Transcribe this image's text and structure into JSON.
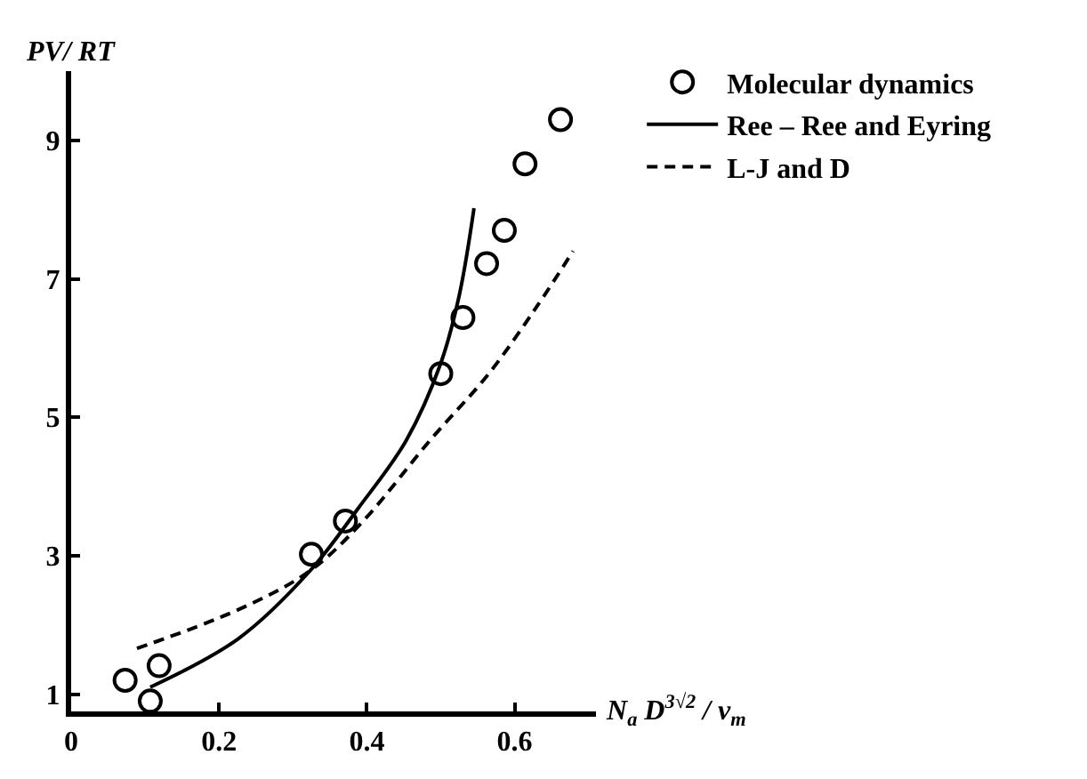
{
  "chart_data": {
    "type": "line",
    "xlabel": "N$_{a}$ D$^{3√2}$ / v$_{m}$",
    "ylabel": "PV/ RT",
    "xlim": [
      0,
      0.71
    ],
    "ylim": [
      0.75,
      10
    ],
    "xticks": [
      0,
      0.2,
      0.4,
      0.6
    ],
    "yticks": [
      1,
      3,
      5,
      7,
      9
    ],
    "legend": "top right",
    "series": [
      {
        "name": "Molecular dynamics",
        "type": "scatter",
        "marker": "circle",
        "color": "#000000",
        "x": [
          0.073,
          0.119,
          0.107,
          0.325,
          0.371,
          0.5,
          0.53,
          0.562,
          0.586,
          0.614,
          0.662
        ],
        "values": [
          1.2,
          1.41,
          0.9,
          3.02,
          3.5,
          5.63,
          6.44,
          7.22,
          7.7,
          8.66,
          9.3
        ]
      },
      {
        "name": "Ree – Ree and Eyring",
        "line_style": "solid",
        "color": "#000000",
        "x": [
          0.107,
          0.226,
          0.323,
          0.388,
          0.453,
          0.5,
          0.525,
          0.545
        ],
        "values": [
          1.1,
          1.8,
          2.78,
          3.68,
          4.66,
          5.78,
          6.76,
          8.02
        ]
      },
      {
        "name": "L-J and D",
        "line_style": "dashed",
        "color": "#000000",
        "x": [
          0.089,
          0.226,
          0.323,
          0.395,
          0.485,
          0.565,
          0.63,
          0.679
        ],
        "values": [
          1.66,
          2.22,
          2.78,
          3.5,
          4.66,
          5.63,
          6.6,
          7.4
        ]
      }
    ]
  }
}
